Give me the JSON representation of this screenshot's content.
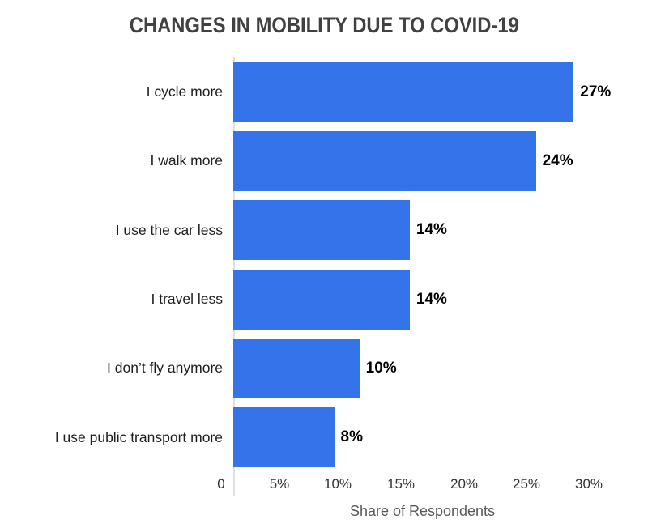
{
  "chart_data": {
    "type": "bar",
    "orientation": "horizontal",
    "title": "CHANGES IN MOBILITY DUE TO COVID-19",
    "categories": [
      "I cycle more",
      "I walk more",
      "I use the car less",
      "I travel less",
      "I don’t fly anymore",
      "I use public transport more"
    ],
    "values": [
      27,
      24,
      14,
      14,
      10,
      8
    ],
    "value_labels": [
      "27%",
      "24%",
      "14%",
      "14%",
      "10%",
      "8%"
    ],
    "xlabel": "Share of Respondents",
    "ylabel": "",
    "xlim": [
      0,
      30
    ],
    "xticks": [
      "0",
      "5%",
      "10%",
      "15%",
      "20%",
      "25%",
      "30%"
    ],
    "xtick_values": [
      0,
      5,
      10,
      15,
      20,
      25,
      30
    ],
    "grid": false,
    "legend": false
  },
  "colors": {
    "bar": "#3573eb",
    "title": "#414141",
    "category_label": "#1e1e1e",
    "value_label": "#000000",
    "tick_label": "#333333",
    "axis_label": "#595959",
    "axis_line": "#e0e0e0",
    "background": "#ffffff"
  }
}
